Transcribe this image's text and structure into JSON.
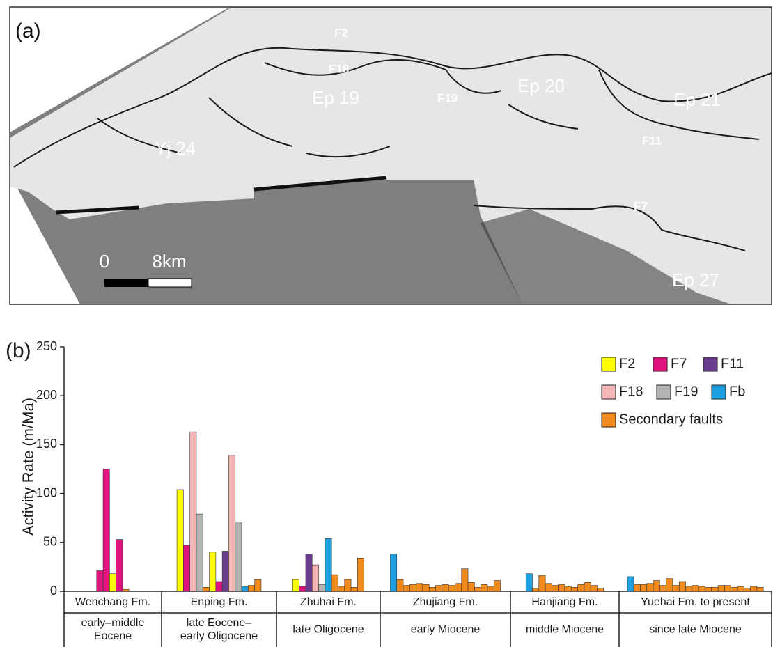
{
  "map": {
    "panel_label": "(a)",
    "labels": {
      "f2": "F2",
      "f18": "F18",
      "ep19": "Ep 19",
      "f19": "F19",
      "ep20": "Ep 20",
      "ep21": "Ep 21",
      "f11": "F11",
      "yj24": "Yj 24",
      "f7": "F7",
      "ep27": "Ep 27"
    },
    "scale": {
      "zero": "0",
      "length": "8km"
    }
  },
  "chart_data": {
    "type": "bar",
    "panel_label": "(b)",
    "ylabel": "Activity Rate (m/Ma)",
    "ylim": [
      0,
      250
    ],
    "yticks": [
      0,
      50,
      100,
      150,
      200,
      250
    ],
    "series": [
      {
        "name": "F2",
        "color": "#ffff00"
      },
      {
        "name": "F7",
        "color": "#e0147d"
      },
      {
        "name": "F11",
        "color": "#6a3d8f"
      },
      {
        "name": "F18",
        "color": "#f4b6b6"
      },
      {
        "name": "F19",
        "color": "#b3b3b3"
      },
      {
        "name": "Fb",
        "color": "#1ea0e0"
      },
      {
        "name": "Secondary faults",
        "color": "#f08a1c"
      }
    ],
    "groups": [
      {
        "formation": "Wenchang Fm.",
        "epoch": [
          "early–middle",
          "Eocene"
        ],
        "bars": [
          {
            "fault": "F7",
            "value": 21
          },
          {
            "fault": "F7",
            "value": 125
          },
          {
            "fault": "F2",
            "value": 18
          },
          {
            "fault": "F7",
            "value": 53
          },
          {
            "fault": "Secondary faults",
            "value": 2
          }
        ]
      },
      {
        "formation": "Enping Fm.",
        "epoch": [
          "late Eocene–",
          "early Oligocene"
        ],
        "bars": [
          {
            "fault": "F2",
            "value": 104
          },
          {
            "fault": "F7",
            "value": 47
          },
          {
            "fault": "F18",
            "value": 163
          },
          {
            "fault": "F19",
            "value": 79
          },
          {
            "fault": "Secondary faults",
            "value": 4
          },
          {
            "fault": "F2",
            "value": 40
          },
          {
            "fault": "F7",
            "value": 10
          },
          {
            "fault": "F11",
            "value": 41
          },
          {
            "fault": "F18",
            "value": 139
          },
          {
            "fault": "F19",
            "value": 71
          },
          {
            "fault": "Fb",
            "value": 5
          },
          {
            "fault": "Secondary faults",
            "value": 6
          },
          {
            "fault": "Secondary faults",
            "value": 12
          }
        ]
      },
      {
        "formation": "Zhuhai Fm.",
        "epoch": [
          "late Oligocene"
        ],
        "bars": [
          {
            "fault": "F2",
            "value": 12
          },
          {
            "fault": "F7",
            "value": 5
          },
          {
            "fault": "F11",
            "value": 38
          },
          {
            "fault": "F18",
            "value": 27
          },
          {
            "fault": "F19",
            "value": 7
          },
          {
            "fault": "Fb",
            "value": 54
          },
          {
            "fault": "Secondary faults",
            "value": 17
          },
          {
            "fault": "Secondary faults",
            "value": 5
          },
          {
            "fault": "Secondary faults",
            "value": 12
          },
          {
            "fault": "Secondary faults",
            "value": 4
          },
          {
            "fault": "Secondary faults",
            "value": 34
          }
        ]
      },
      {
        "formation": "Zhujiang Fm.",
        "epoch": [
          "early Miocene"
        ],
        "bars": [
          {
            "fault": "Fb",
            "value": 38
          },
          {
            "fault": "Secondary faults",
            "value": 12
          },
          {
            "fault": "Secondary faults",
            "value": 6
          },
          {
            "fault": "Secondary faults",
            "value": 7
          },
          {
            "fault": "Secondary faults",
            "value": 8
          },
          {
            "fault": "Secondary faults",
            "value": 7
          },
          {
            "fault": "Secondary faults",
            "value": 4
          },
          {
            "fault": "Secondary faults",
            "value": 6
          },
          {
            "fault": "Secondary faults",
            "value": 7
          },
          {
            "fault": "Secondary faults",
            "value": 6
          },
          {
            "fault": "Secondary faults",
            "value": 8
          },
          {
            "fault": "Secondary faults",
            "value": 23
          },
          {
            "fault": "Secondary faults",
            "value": 9
          },
          {
            "fault": "Secondary faults",
            "value": 4
          },
          {
            "fault": "Secondary faults",
            "value": 7
          },
          {
            "fault": "Secondary faults",
            "value": 5
          },
          {
            "fault": "Secondary faults",
            "value": 11
          }
        ]
      },
      {
        "formation": "Hanjiang Fm.",
        "epoch": [
          "middle Miocene"
        ],
        "bars": [
          {
            "fault": "Fb",
            "value": 18
          },
          {
            "fault": "Secondary faults",
            "value": 3
          },
          {
            "fault": "Secondary faults",
            "value": 16
          },
          {
            "fault": "Secondary faults",
            "value": 8
          },
          {
            "fault": "Secondary faults",
            "value": 6
          },
          {
            "fault": "Secondary faults",
            "value": 7
          },
          {
            "fault": "Secondary faults",
            "value": 5
          },
          {
            "fault": "Secondary faults",
            "value": 4
          },
          {
            "fault": "Secondary faults",
            "value": 7
          },
          {
            "fault": "Secondary faults",
            "value": 9
          },
          {
            "fault": "Secondary faults",
            "value": 6
          },
          {
            "fault": "Secondary faults",
            "value": 3
          }
        ]
      },
      {
        "formation": "Yuehai Fm. to present",
        "epoch": [
          "since late Miocene"
        ],
        "bars": [
          {
            "fault": "Fb",
            "value": 15
          },
          {
            "fault": "Secondary faults",
            "value": 7
          },
          {
            "fault": "Secondary faults",
            "value": 7
          },
          {
            "fault": "Secondary faults",
            "value": 8
          },
          {
            "fault": "Secondary faults",
            "value": 11
          },
          {
            "fault": "Secondary faults",
            "value": 6
          },
          {
            "fault": "Secondary faults",
            "value": 13
          },
          {
            "fault": "Secondary faults",
            "value": 6
          },
          {
            "fault": "Secondary faults",
            "value": 10
          },
          {
            "fault": "Secondary faults",
            "value": 5
          },
          {
            "fault": "Secondary faults",
            "value": 6
          },
          {
            "fault": "Secondary faults",
            "value": 5
          },
          {
            "fault": "Secondary faults",
            "value": 4
          },
          {
            "fault": "Secondary faults",
            "value": 4
          },
          {
            "fault": "Secondary faults",
            "value": 6
          },
          {
            "fault": "Secondary faults",
            "value": 6
          },
          {
            "fault": "Secondary faults",
            "value": 4
          },
          {
            "fault": "Secondary faults",
            "value": 5
          },
          {
            "fault": "Secondary faults",
            "value": 3
          },
          {
            "fault": "Secondary faults",
            "value": 5
          },
          {
            "fault": "Secondary faults",
            "value": 4
          }
        ]
      }
    ]
  }
}
